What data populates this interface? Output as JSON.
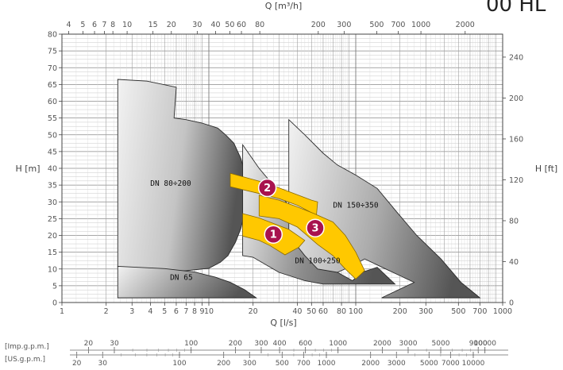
{
  "corner_text": "00 HL",
  "chart_data": {
    "type": "area",
    "xlabel": "Q [l/s]",
    "ylabel": "H [m]",
    "top_axis_label": "Q [m³/h]",
    "right_axis_label": "H [ft]",
    "x_scale": "log",
    "xlim": [
      1,
      1000
    ],
    "ylim": [
      0,
      80
    ],
    "grid": true,
    "x_ticks": [
      {
        "v": 1,
        "label": "1"
      },
      {
        "v": 2,
        "label": "2"
      },
      {
        "v": 3,
        "label": "3"
      },
      {
        "v": 4,
        "label": "4"
      },
      {
        "v": 5,
        "label": "5"
      },
      {
        "v": 6,
        "label": "6"
      },
      {
        "v": 7,
        "label": "7"
      },
      {
        "v": 8,
        "label": "8"
      },
      {
        "v": 9,
        "label": "9"
      },
      {
        "v": 10,
        "label": "10"
      },
      {
        "v": 20,
        "label": "20"
      },
      {
        "v": 40,
        "label": "40"
      },
      {
        "v": 50,
        "label": "50"
      },
      {
        "v": 60,
        "label": "60"
      },
      {
        "v": 80,
        "label": "80"
      },
      {
        "v": 100,
        "label": "100"
      },
      {
        "v": 200,
        "label": "200"
      },
      {
        "v": 300,
        "label": "300"
      },
      {
        "v": 500,
        "label": "500"
      },
      {
        "v": 700,
        "label": "700"
      },
      {
        "v": 1000,
        "label": "1000"
      }
    ],
    "y_ticks": [
      0,
      5,
      10,
      15,
      20,
      25,
      30,
      35,
      40,
      45,
      50,
      55,
      60,
      65,
      70,
      75,
      80
    ],
    "top_ticks": [
      {
        "v": 4,
        "label": "4"
      },
      {
        "v": 5,
        "label": "5"
      },
      {
        "v": 6,
        "label": "6"
      },
      {
        "v": 7,
        "label": "7"
      },
      {
        "v": 8,
        "label": "8"
      },
      {
        "v": 10,
        "label": "10"
      },
      {
        "v": 15,
        "label": "15"
      },
      {
        "v": 20,
        "label": "20"
      },
      {
        "v": 30,
        "label": "30"
      },
      {
        "v": 40,
        "label": "40"
      },
      {
        "v": 50,
        "label": "50"
      },
      {
        "v": 60,
        "label": "60"
      },
      {
        "v": 80,
        "label": "80"
      },
      {
        "v": 200,
        "label": "200"
      },
      {
        "v": 300,
        "label": "300"
      },
      {
        "v": 500,
        "label": "500"
      },
      {
        "v": 700,
        "label": "700"
      },
      {
        "v": 1000,
        "label": "1000"
      },
      {
        "v": 2000,
        "label": "2000"
      }
    ],
    "right_ticks": [
      0,
      40,
      80,
      120,
      160,
      200,
      240
    ],
    "imp_scale": {
      "name": "[Imp.g.p.m.]",
      "ticks": [
        {
          "v": 20,
          "label": "20"
        },
        {
          "v": 30,
          "label": "30"
        },
        {
          "v": 100,
          "label": "100"
        },
        {
          "v": 200,
          "label": "200"
        },
        {
          "v": 300,
          "label": "300"
        },
        {
          "v": 400,
          "label": "400"
        },
        {
          "v": 600,
          "label": "600"
        },
        {
          "v": 1000,
          "label": "1000"
        },
        {
          "v": 2000,
          "label": "2000"
        },
        {
          "v": 3000,
          "label": "3000"
        },
        {
          "v": 5000,
          "label": "5000"
        },
        {
          "v": 9000,
          "label": "9000"
        },
        {
          "v": 10000,
          "label": "10000"
        }
      ]
    },
    "us_scale": {
      "name": "[US.g.p.m.]",
      "ticks": [
        {
          "v": 20,
          "label": "20"
        },
        {
          "v": 30,
          "label": "30"
        },
        {
          "v": 100,
          "label": "100"
        },
        {
          "v": 200,
          "label": "200"
        },
        {
          "v": 300,
          "label": "300"
        },
        {
          "v": 500,
          "label": "500"
        },
        {
          "v": 700,
          "label": "700"
        },
        {
          "v": 1000,
          "label": "1000"
        },
        {
          "v": 2000,
          "label": "2000"
        },
        {
          "v": 3000,
          "label": "3000"
        },
        {
          "v": 5000,
          "label": "5000"
        },
        {
          "v": 7000,
          "label": "7000"
        },
        {
          "v": 10000,
          "label": "10000"
        }
      ]
    },
    "regions": [
      {
        "label": "DN 80÷200",
        "color": "#c4c4c4",
        "label_at": [
          5.5,
          35.5
        ],
        "points": [
          [
            2.4,
            66.5
          ],
          [
            3.8,
            66
          ],
          [
            6,
            64.2
          ],
          [
            5.8,
            55
          ],
          [
            7,
            54.5
          ],
          [
            9,
            53.5
          ],
          [
            11.5,
            52
          ],
          [
            13,
            50
          ],
          [
            14.8,
            47.5
          ],
          [
            16.5,
            43
          ],
          [
            18.2,
            36.5
          ],
          [
            17.8,
            28
          ],
          [
            16.5,
            22
          ],
          [
            15.2,
            18
          ],
          [
            13.5,
            14
          ],
          [
            12,
            12
          ],
          [
            10,
            10.2
          ],
          [
            7,
            9.5
          ],
          [
            4.5,
            9.6
          ],
          [
            2.4,
            10.5
          ]
        ]
      },
      {
        "label": "DN 65",
        "color": "#9a9a9a",
        "label_at": [
          6.5,
          7.5
        ],
        "points": [
          [
            2.4,
            10.8
          ],
          [
            5,
            10.1
          ],
          [
            8,
            9.1
          ],
          [
            11,
            7.6
          ],
          [
            14,
            6
          ],
          [
            17.5,
            3.8
          ],
          [
            21,
            1.4
          ],
          [
            2.4,
            1.4
          ]
        ]
      },
      {
        "label": "DN 100÷250",
        "color": "#8c8c8c",
        "label_at": [
          55,
          12.4
        ],
        "points": [
          [
            17,
            47
          ],
          [
            22,
            40
          ],
          [
            30,
            33
          ],
          [
            40,
            25
          ],
          [
            55,
            17
          ],
          [
            75,
            9
          ],
          [
            95,
            6.5
          ],
          [
            110,
            9
          ],
          [
            140,
            10.5
          ],
          [
            185,
            5.5
          ],
          [
            60,
            5.5
          ],
          [
            45,
            6.5
          ],
          [
            30,
            9
          ],
          [
            20,
            13.5
          ],
          [
            17,
            14
          ]
        ]
      },
      {
        "label": "DN 150÷350",
        "color": "#aaaaaa",
        "label_at": [
          100,
          29
        ],
        "points": [
          [
            35,
            54.5
          ],
          [
            45,
            50
          ],
          [
            60,
            44.5
          ],
          [
            75,
            41
          ],
          [
            100,
            38
          ],
          [
            140,
            34
          ],
          [
            190,
            27
          ],
          [
            260,
            20
          ],
          [
            380,
            13
          ],
          [
            520,
            6
          ],
          [
            700,
            1.4
          ],
          [
            150,
            1.4
          ],
          [
            250,
            6
          ],
          [
            160,
            10
          ],
          [
            115,
            13
          ],
          [
            95,
            11
          ],
          [
            75,
            9
          ],
          [
            55,
            10
          ],
          [
            45,
            14
          ],
          [
            35,
            20
          ]
        ]
      }
    ],
    "bands": [
      {
        "name": "2",
        "color": "#ffc800",
        "points": [
          [
            14,
            38.5
          ],
          [
            25,
            35.5
          ],
          [
            50,
            30.5
          ],
          [
            55,
            30
          ],
          [
            54,
            26
          ],
          [
            40,
            29
          ],
          [
            30,
            31
          ],
          [
            22,
            32.5
          ],
          [
            14,
            34.5
          ]
        ],
        "badge_at": [
          25,
          34.2
        ]
      },
      {
        "name": "1",
        "color": "#ffc800",
        "points": [
          [
            17,
            26.5
          ],
          [
            22,
            25.2
          ],
          [
            35,
            21.8
          ],
          [
            45,
            18.5
          ],
          [
            41,
            16.5
          ],
          [
            33,
            14.2
          ],
          [
            26,
            17
          ],
          [
            22,
            18.5
          ],
          [
            17,
            19.8
          ]
        ],
        "badge_at": [
          27.5,
          20.3
        ]
      },
      {
        "name": "3",
        "color": "#ffc800",
        "points": [
          [
            22,
            32
          ],
          [
            30,
            30.5
          ],
          [
            40,
            28.5
          ],
          [
            52,
            26.5
          ],
          [
            70,
            24
          ],
          [
            85,
            20
          ],
          [
            100,
            15
          ],
          [
            115,
            9.5
          ],
          [
            100,
            7
          ],
          [
            85,
            10
          ],
          [
            70,
            14
          ],
          [
            55,
            17.3
          ],
          [
            40,
            22.5
          ],
          [
            30,
            25
          ],
          [
            22,
            25.8
          ]
        ],
        "badge_at": [
          53,
          22.2
        ]
      }
    ],
    "badge_color": "#a8124e"
  }
}
